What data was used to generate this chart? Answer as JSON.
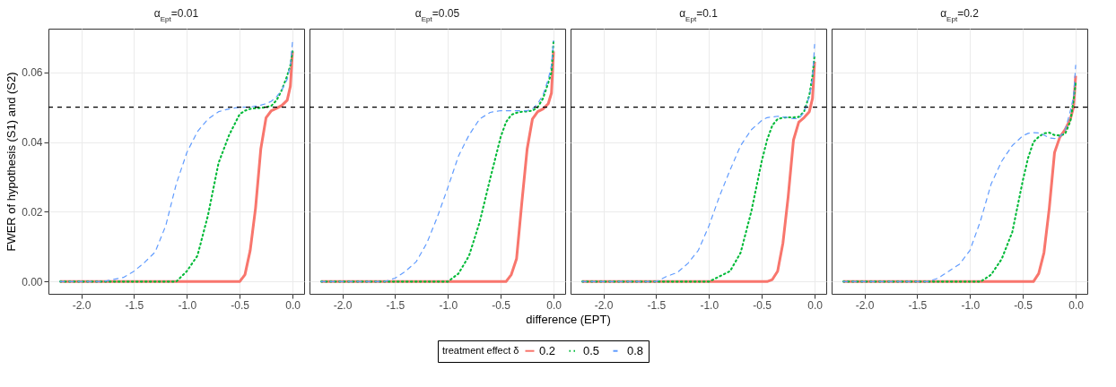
{
  "chart_data": [
    {
      "type": "line",
      "title": "α$_{Ept}$=0.01",
      "ylabel": "FWER of hypothesis (S1) and (S2)",
      "legend_title": "treatment effect δ",
      "legend": "bottom",
      "grid": true,
      "x": [
        -2.2,
        -2.0,
        -1.8,
        -1.6,
        -1.5,
        -1.4,
        -1.3,
        -1.2,
        -1.1,
        -1.0,
        -0.9,
        -0.8,
        -0.7,
        -0.6,
        -0.5,
        -0.45,
        -0.4,
        -0.35,
        -0.3,
        -0.25,
        -0.2,
        -0.15,
        -0.1,
        -0.05,
        -0.02,
        0
      ],
      "xlim": [
        -2.31,
        0.11
      ],
      "ylim": [
        -0.0035,
        0.0725
      ],
      "xticks": [
        {
          "value": -2,
          "label": "-2.0"
        },
        {
          "value": -1.5,
          "label": "-1.5"
        },
        {
          "value": -1,
          "label": "-1.0"
        },
        {
          "value": -0.5,
          "label": "-0.5"
        },
        {
          "value": 0,
          "label": "0.0"
        }
      ],
      "yticks": [
        {
          "value": 0,
          "label": "0.00"
        },
        {
          "value": 0.02,
          "label": "0.02"
        },
        {
          "value": 0.04,
          "label": "0.04"
        },
        {
          "value": 0.06,
          "label": "0.06"
        }
      ],
      "ref_lines": [
        {
          "axis": "y",
          "value": 0.05,
          "color": "#000000",
          "line_style": "dashed"
        }
      ],
      "series": [
        {
          "name": "0.2",
          "color": "#f8766d",
          "line_style": "solid",
          "values": [
            0,
            0,
            0,
            0,
            0,
            0,
            0,
            0,
            0,
            0,
            0,
            0,
            0,
            0,
            0,
            0.002,
            0.009,
            0.021,
            0.038,
            0.047,
            0.049,
            0.0497,
            0.0505,
            0.052,
            0.056,
            0.066
          ]
        },
        {
          "name": "0.5",
          "color": "#00ba38",
          "line_style": "dotted",
          "values": [
            0,
            0,
            0,
            0,
            0,
            0,
            0,
            0,
            0,
            0.003,
            0.0074,
            0.019,
            0.034,
            0.042,
            0.048,
            0.049,
            0.0495,
            0.0497,
            0.0498,
            0.05,
            0.0504,
            0.052,
            0.055,
            0.059,
            0.062,
            0.066
          ]
        },
        {
          "name": "0.8",
          "color": "#619cff",
          "line_style": "dashed",
          "values": [
            0,
            0,
            0,
            0.0012,
            0.003,
            0.0055,
            0.0085,
            0.016,
            0.028,
            0.037,
            0.043,
            0.0466,
            0.0487,
            0.0495,
            0.05,
            0.05,
            0.05,
            0.0503,
            0.0506,
            0.051,
            0.0517,
            0.053,
            0.055,
            0.058,
            0.062,
            0.0687
          ]
        }
      ]
    },
    {
      "type": "line",
      "title": "α$_{Ept}$=0.05",
      "xlabel": "difference (EPT)",
      "grid": true,
      "tick_labels": "x",
      "x": [
        -2.2,
        -2.0,
        -1.8,
        -1.6,
        -1.5,
        -1.4,
        -1.3,
        -1.2,
        -1.1,
        -1.0,
        -0.9,
        -0.8,
        -0.7,
        -0.6,
        -0.5,
        -0.45,
        -0.4,
        -0.35,
        -0.3,
        -0.25,
        -0.2,
        -0.15,
        -0.1,
        -0.05,
        -0.02,
        0
      ],
      "xlim": [
        -2.31,
        0.11
      ],
      "ylim": [
        -0.0035,
        0.0725
      ],
      "xticks": [
        {
          "value": -2,
          "label": "-2.0"
        },
        {
          "value": -1.5,
          "label": "-1.5"
        },
        {
          "value": -1,
          "label": "-1.0"
        },
        {
          "value": -0.5,
          "label": "-0.5"
        },
        {
          "value": 0,
          "label": "0.0"
        }
      ],
      "yticks": [
        {
          "value": 0,
          "label": null
        },
        {
          "value": 0.02,
          "label": null
        },
        {
          "value": 0.04,
          "label": null
        },
        {
          "value": 0.06,
          "label": null
        }
      ],
      "ref_lines": [
        {
          "axis": "y",
          "value": 0.05,
          "color": "#000000",
          "line_style": "dashed"
        }
      ],
      "series": [
        {
          "name": "0.2",
          "color": "#f8766d",
          "line_style": "solid",
          "values": [
            0,
            0,
            0,
            0,
            0,
            0,
            0,
            0,
            0,
            0,
            0,
            0,
            0,
            0,
            0,
            0,
            0.002,
            0.0066,
            0.0227,
            0.038,
            0.0466,
            0.0487,
            0.0495,
            0.051,
            0.054,
            0.066
          ]
        },
        {
          "name": "0.5",
          "color": "#00ba38",
          "line_style": "dotted",
          "values": [
            0,
            0,
            0,
            0,
            0,
            0,
            0,
            0,
            0,
            0,
            0.0023,
            0.0074,
            0.017,
            0.0295,
            0.0415,
            0.0457,
            0.0478,
            0.0484,
            0.0487,
            0.0488,
            0.049,
            0.05,
            0.0525,
            0.057,
            0.06,
            0.069
          ]
        },
        {
          "name": "0.8",
          "color": "#619cff",
          "line_style": "dashed",
          "values": [
            0,
            0,
            0,
            0,
            0.001,
            0.003,
            0.0057,
            0.011,
            0.0185,
            0.027,
            0.036,
            0.042,
            0.0466,
            0.0485,
            0.049,
            0.049,
            0.049,
            0.049,
            0.049,
            0.049,
            0.0495,
            0.051,
            0.0535,
            0.058,
            0.062,
            0.069
          ]
        }
      ]
    },
    {
      "type": "line",
      "title": "α$_{Ept}$=0.1",
      "grid": true,
      "tick_labels": "x",
      "x": [
        -2.2,
        -2.0,
        -1.8,
        -1.6,
        -1.5,
        -1.4,
        -1.3,
        -1.2,
        -1.1,
        -1.0,
        -0.9,
        -0.8,
        -0.7,
        -0.6,
        -0.5,
        -0.45,
        -0.4,
        -0.35,
        -0.3,
        -0.25,
        -0.2,
        -0.15,
        -0.1,
        -0.05,
        -0.02,
        0
      ],
      "xlim": [
        -2.31,
        0.11
      ],
      "ylim": [
        -0.0035,
        0.0725
      ],
      "xticks": [
        {
          "value": -2,
          "label": "-2.0"
        },
        {
          "value": -1.5,
          "label": "-1.5"
        },
        {
          "value": -1,
          "label": "-1.0"
        },
        {
          "value": -0.5,
          "label": "-0.5"
        },
        {
          "value": 0,
          "label": "0.0"
        }
      ],
      "yticks": [
        {
          "value": 0,
          "label": null
        },
        {
          "value": 0.02,
          "label": null
        },
        {
          "value": 0.04,
          "label": null
        },
        {
          "value": 0.06,
          "label": null
        }
      ],
      "ref_lines": [
        {
          "axis": "y",
          "value": 0.05,
          "color": "#000000",
          "line_style": "dashed"
        }
      ],
      "series": [
        {
          "name": "0.2",
          "color": "#f8766d",
          "line_style": "solid",
          "values": [
            0,
            0,
            0,
            0,
            0,
            0,
            0,
            0,
            0,
            0,
            0,
            0,
            0,
            0,
            0,
            0,
            0.0006,
            0.003,
            0.011,
            0.0244,
            0.0406,
            0.0457,
            0.047,
            0.0487,
            0.0525,
            0.063
          ]
        },
        {
          "name": "0.5",
          "color": "#00ba38",
          "line_style": "dotted",
          "values": [
            0,
            0,
            0,
            0,
            0,
            0,
            0,
            0,
            0,
            0,
            0.0015,
            0.003,
            0.0083,
            0.02,
            0.0346,
            0.0406,
            0.0448,
            0.0466,
            0.047,
            0.0471,
            0.0471,
            0.0472,
            0.0487,
            0.0534,
            0.059,
            0.065
          ]
        },
        {
          "name": "0.8",
          "color": "#619cff",
          "line_style": "dashed",
          "values": [
            0,
            0,
            0,
            0,
            0,
            0.0015,
            0.0026,
            0.0052,
            0.009,
            0.016,
            0.0245,
            0.032,
            0.039,
            0.0435,
            0.0462,
            0.047,
            0.0472,
            0.0474,
            0.0472,
            0.047,
            0.0467,
            0.0467,
            0.0485,
            0.053,
            0.058,
            0.068
          ]
        }
      ]
    },
    {
      "type": "line",
      "title": "α$_{Ept}$=0.2",
      "grid": true,
      "tick_labels": "x",
      "x": [
        -2.2,
        -2.0,
        -1.8,
        -1.6,
        -1.5,
        -1.4,
        -1.3,
        -1.2,
        -1.1,
        -1.0,
        -0.9,
        -0.8,
        -0.7,
        -0.6,
        -0.5,
        -0.45,
        -0.4,
        -0.35,
        -0.3,
        -0.25,
        -0.2,
        -0.15,
        -0.1,
        -0.05,
        -0.02,
        0
      ],
      "xlim": [
        -2.31,
        0.11
      ],
      "ylim": [
        -0.0035,
        0.0725
      ],
      "xticks": [
        {
          "value": -2,
          "label": "-2.0"
        },
        {
          "value": -1.5,
          "label": "-1.5"
        },
        {
          "value": -1,
          "label": "-1.0"
        },
        {
          "value": -0.5,
          "label": "-0.5"
        },
        {
          "value": 0,
          "label": "0.0"
        }
      ],
      "yticks": [
        {
          "value": 0,
          "label": null
        },
        {
          "value": 0.02,
          "label": null
        },
        {
          "value": 0.04,
          "label": null
        },
        {
          "value": 0.06,
          "label": null
        }
      ],
      "ref_lines": [
        {
          "axis": "y",
          "value": 0.05,
          "color": "#000000",
          "line_style": "dashed"
        }
      ],
      "series": [
        {
          "name": "0.2",
          "color": "#f8766d",
          "line_style": "solid",
          "values": [
            0,
            0,
            0,
            0,
            0,
            0,
            0,
            0,
            0,
            0,
            0,
            0,
            0,
            0,
            0,
            0,
            0,
            0.0023,
            0.0083,
            0.021,
            0.037,
            0.0414,
            0.0436,
            0.0466,
            0.05,
            0.059
          ]
        },
        {
          "name": "0.5",
          "color": "#00ba38",
          "line_style": "dotted",
          "values": [
            0,
            0,
            0,
            0,
            0,
            0,
            0,
            0,
            0,
            0,
            0,
            0.002,
            0.0065,
            0.0142,
            0.029,
            0.0355,
            0.04,
            0.0415,
            0.0425,
            0.0427,
            0.042,
            0.0419,
            0.0423,
            0.046,
            0.052,
            0.057
          ]
        },
        {
          "name": "0.8",
          "color": "#619cff",
          "line_style": "dashed",
          "values": [
            0,
            0,
            0,
            0,
            0,
            0,
            0.001,
            0.003,
            0.005,
            0.009,
            0.0175,
            0.028,
            0.0345,
            0.039,
            0.0418,
            0.0425,
            0.0427,
            0.0426,
            0.042,
            0.0412,
            0.041,
            0.0415,
            0.0433,
            0.049,
            0.053,
            0.062
          ]
        }
      ]
    }
  ]
}
